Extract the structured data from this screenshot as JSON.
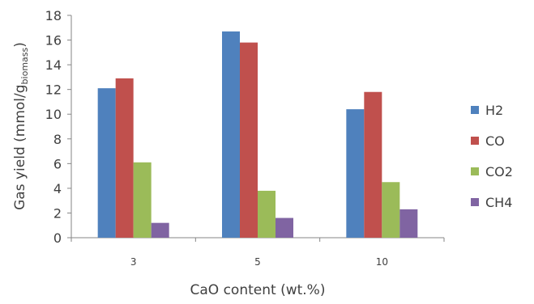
{
  "chart_data": {
    "type": "bar",
    "categories": [
      "3",
      "5",
      "10"
    ],
    "series": [
      {
        "name": "H2",
        "color": "#4F81BD",
        "values": [
          12.1,
          16.7,
          10.4
        ]
      },
      {
        "name": "CO",
        "color": "#C0504D",
        "values": [
          12.9,
          15.8,
          11.8
        ]
      },
      {
        "name": "CO2",
        "color": "#9BBB59",
        "values": [
          6.1,
          3.8,
          4.5
        ]
      },
      {
        "name": "CH4",
        "color": "#8064A2",
        "values": [
          1.2,
          1.6,
          2.3
        ]
      }
    ],
    "xlabel": "CaO content (wt.%)",
    "ylabel": {
      "main": "Gas yield (mmol/g",
      "subscript": "biomass",
      "suffix": ")"
    },
    "ylim": [
      0,
      18
    ],
    "yticks": [
      0,
      2,
      4,
      6,
      8,
      10,
      12,
      14,
      16,
      18
    ],
    "grid": false,
    "legend_position": "right"
  }
}
